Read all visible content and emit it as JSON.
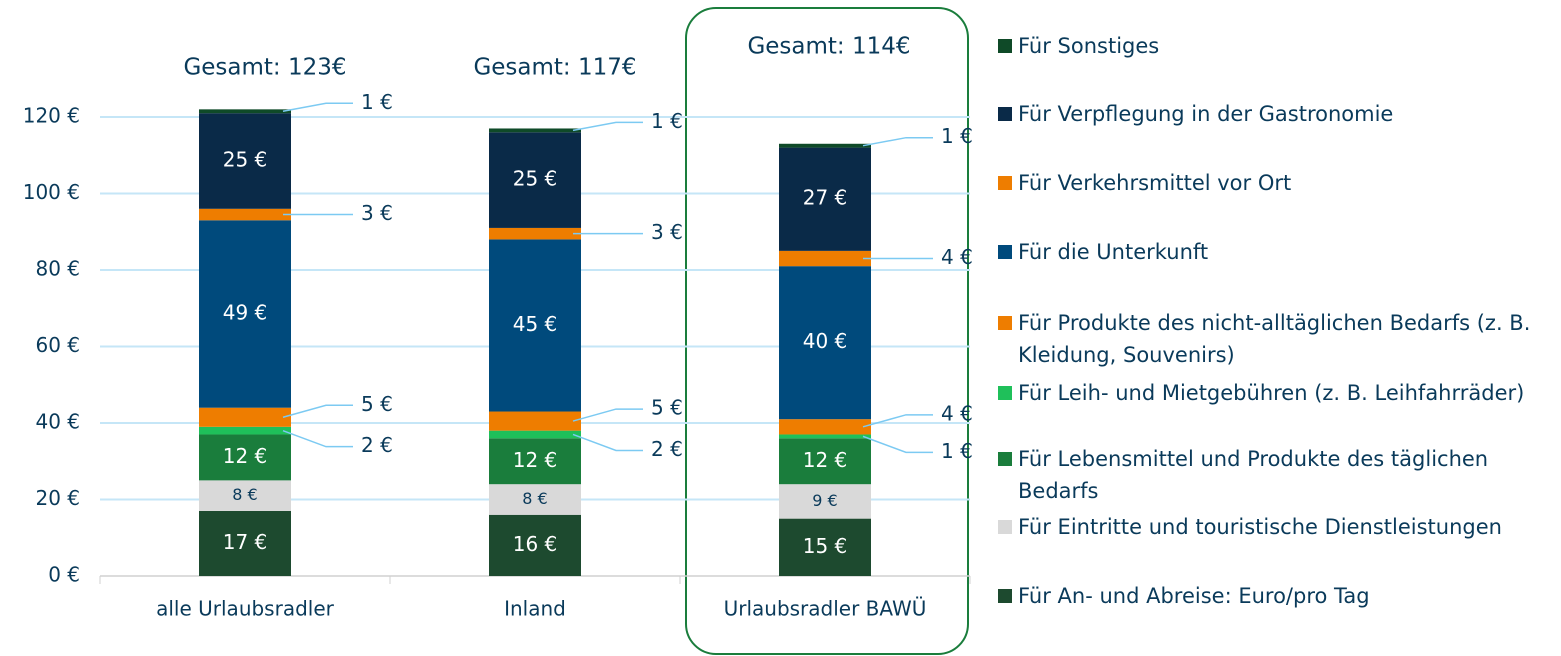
{
  "chart_data": {
    "type": "stacked_bar",
    "categories": [
      "alle Urlaubsradler",
      "Inland",
      "Urlaubsradler BAWÜ"
    ],
    "annotations": [
      "Gesamt: 123€",
      "Gesamt: 117€",
      "Gesamt: 114€"
    ],
    "ylim": [
      0,
      120
    ],
    "yticks": [
      {
        "value": 0,
        "label": "0 €"
      },
      {
        "value": 20,
        "label": "20 €"
      },
      {
        "value": 40,
        "label": "40 €"
      },
      {
        "value": 60,
        "label": "60 €"
      },
      {
        "value": 80,
        "label": "80 €"
      },
      {
        "value": 100,
        "label": "100 €"
      },
      {
        "value": 120,
        "label": "120 €"
      }
    ],
    "grid": true,
    "legend": "right",
    "series": [
      {
        "name": "Für An- und Abreise: Euro/pro Tag",
        "color": "#1d4a2f",
        "values": [
          17,
          16,
          15
        ],
        "value_labels": [
          "17 €",
          "16 €",
          "15 €"
        ]
      },
      {
        "name": "Für Eintritte und touristische Dienstleistungen",
        "color": "#d9d9d9",
        "values": [
          8,
          8,
          9
        ],
        "value_labels": [
          "8 €",
          "8 €",
          "9 €"
        ]
      },
      {
        "name": "Für Lebensmittel und Produkte des täglichen Bedarfs",
        "color": "#1a7d3c",
        "values": [
          12,
          12,
          12
        ],
        "value_labels": [
          "12 €",
          "12 €",
          "12 €"
        ]
      },
      {
        "name": "Für Leih- und Mietgebühren (z. B. Leihfahrräder)",
        "color": "#1fc05a",
        "values": [
          2,
          2,
          1
        ],
        "value_labels": [
          "2 €",
          "2 €",
          "1 €"
        ]
      },
      {
        "name": "Für Produkte des nicht-alltäglichen Bedarfs (z. B. Kleidung, Souvenirs)",
        "color": "#ee7d00",
        "values": [
          5,
          5,
          4
        ],
        "value_labels": [
          "5 €",
          "5 €",
          "4 €"
        ]
      },
      {
        "name": "Für die Unterkunft",
        "color": "#004a7c",
        "values": [
          49,
          45,
          40
        ],
        "value_labels": [
          "49 €",
          "45 €",
          "40 €"
        ]
      },
      {
        "name": "Für Verkehrsmittel vor Ort",
        "color": "#ee7d00",
        "values": [
          3,
          3,
          4
        ],
        "value_labels": [
          "3 €",
          "3 €",
          "4 €"
        ]
      },
      {
        "name": "Für Verpflegung in der Gastronomie",
        "color": "#0a2a48",
        "values": [
          25,
          25,
          27
        ],
        "value_labels": [
          "25 €",
          "25 €",
          "27 €"
        ]
      },
      {
        "name": "Für Sonstiges",
        "color": "#0f4a28",
        "values": [
          1,
          1,
          1
        ],
        "value_labels": [
          "1 €",
          "1 €",
          "1 €"
        ]
      }
    ]
  }
}
